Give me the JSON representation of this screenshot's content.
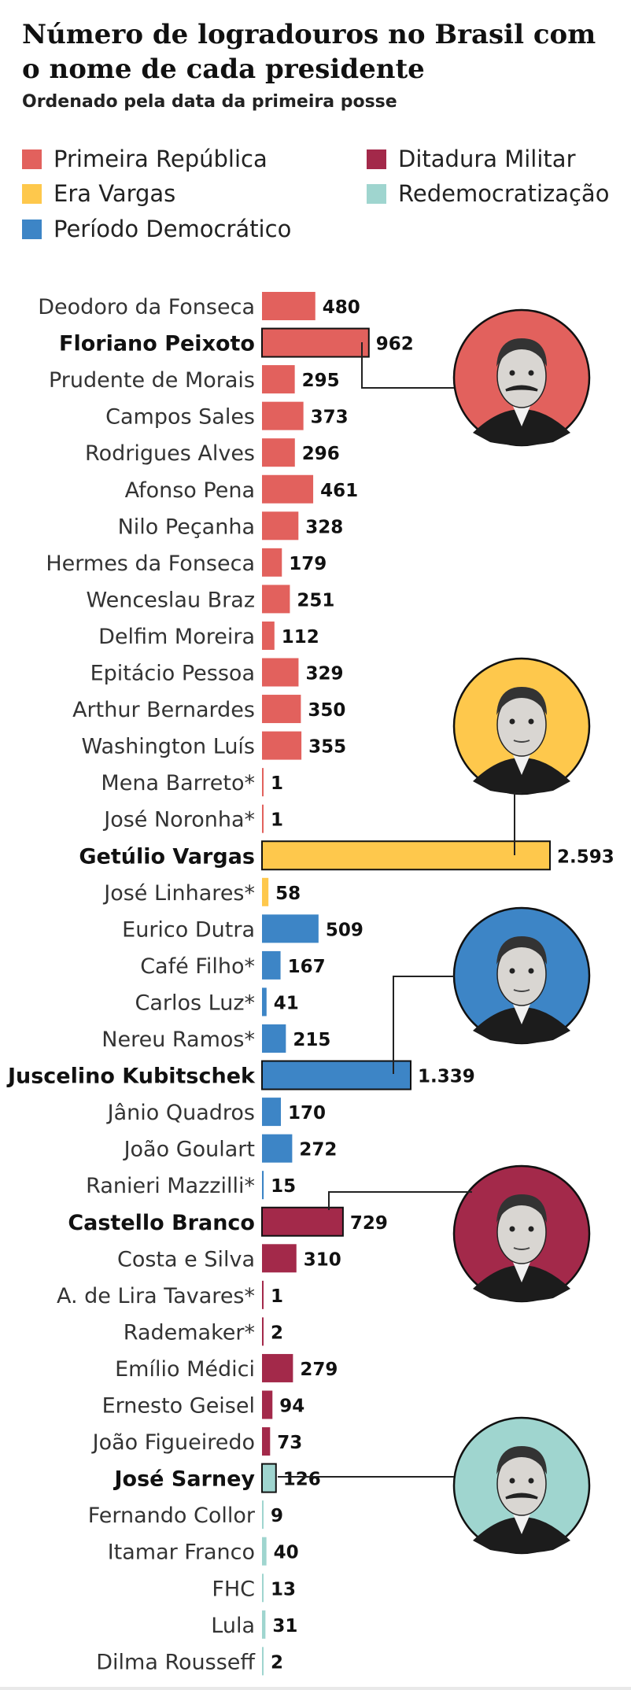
{
  "header": {
    "title": "Número de logradouros no Brasil com o nome de cada presidente",
    "subtitle": "Ordenado pela data da primeira posse"
  },
  "legend": [
    {
      "key": "pr",
      "label": "Primeira República",
      "color": "#e2615d"
    },
    {
      "key": "ev",
      "label": "Era Vargas",
      "color": "#fec84c"
    },
    {
      "key": "pd",
      "label": "Período Democrático",
      "color": "#3d85c6"
    },
    {
      "key": "dm",
      "label": "Ditadura Militar",
      "color": "#a3294a"
    },
    {
      "key": "re",
      "label": "Redemocratização",
      "color": "#9fd5cf"
    }
  ],
  "chart_data": {
    "type": "bar",
    "orientation": "horizontal",
    "title": "Número de logradouros no Brasil com o nome de cada presidente",
    "subtitle": "Ordenado pela data da primeira posse",
    "xlim": [
      0,
      2593
    ],
    "categories": [
      "Deodoro da Fonseca",
      "Floriano Peixoto",
      "Prudente de Morais",
      "Campos Sales",
      "Rodrigues Alves",
      "Afonso Pena",
      "Nilo Peçanha",
      "Hermes da Fonseca",
      "Wenceslau Braz",
      "Delfim Moreira",
      "Epitácio Pessoa",
      "Arthur Bernardes",
      "Washington Luís",
      "Mena Barreto*",
      "José Noronha*",
      "Getúlio Vargas",
      "José Linhares*",
      "Eurico Dutra",
      "Café Filho*",
      "Carlos Luz*",
      "Nereu Ramos*",
      "Juscelino Kubitschek",
      "Jânio Quadros",
      "João Goulart",
      "Ranieri Mazzilli*",
      "Castello Branco",
      "Costa e Silva",
      "A. de Lira Tavares*",
      "Rademaker*",
      "Emílio Médici",
      "Ernesto Geisel",
      "João Figueiredo",
      "José Sarney",
      "Fernando Collor",
      "Itamar Franco",
      "FHC",
      "Lula",
      "Dilma Rousseff"
    ],
    "values": [
      480,
      962,
      295,
      373,
      296,
      461,
      328,
      179,
      251,
      112,
      329,
      350,
      355,
      1,
      1,
      2593,
      58,
      509,
      167,
      41,
      215,
      1339,
      170,
      272,
      15,
      729,
      310,
      1,
      2,
      279,
      94,
      73,
      126,
      9,
      40,
      13,
      31,
      2
    ],
    "value_labels": [
      "480",
      "962",
      "295",
      "373",
      "296",
      "461",
      "328",
      "179",
      "251",
      "112",
      "329",
      "350",
      "355",
      "1",
      "1",
      "2.593",
      "58",
      "509",
      "167",
      "41",
      "215",
      "1.339",
      "170",
      "272",
      "15",
      "729",
      "310",
      "1",
      "2",
      "279",
      "94",
      "73",
      "126",
      "9",
      "40",
      "13",
      "31",
      "2"
    ],
    "periods": [
      "pr",
      "pr",
      "pr",
      "pr",
      "pr",
      "pr",
      "pr",
      "pr",
      "pr",
      "pr",
      "pr",
      "pr",
      "pr",
      "pr",
      "pr",
      "ev",
      "ev",
      "pd",
      "pd",
      "pd",
      "pd",
      "pd",
      "pd",
      "pd",
      "pd",
      "dm",
      "dm",
      "dm",
      "dm",
      "dm",
      "dm",
      "dm",
      "re",
      "re",
      "re",
      "re",
      "re",
      "re"
    ],
    "highlighted": [
      "Floriano Peixoto",
      "Getúlio Vargas",
      "Juscelino Kubitschek",
      "Castello Branco",
      "José Sarney"
    ]
  },
  "portraits": [
    {
      "name": "Floriano Peixoto",
      "period": "pr",
      "bg": "#e2615d",
      "face": "mustache"
    },
    {
      "name": "Getúlio Vargas",
      "period": "ev",
      "bg": "#fec84c",
      "face": "plain"
    },
    {
      "name": "Juscelino Kubitschek",
      "period": "pd",
      "bg": "#3d85c6",
      "face": "plain"
    },
    {
      "name": "Castello Branco",
      "period": "dm",
      "bg": "#a3294a",
      "face": "plain"
    },
    {
      "name": "José Sarney",
      "period": "re",
      "bg": "#9fd5cf",
      "face": "mustache"
    }
  ]
}
